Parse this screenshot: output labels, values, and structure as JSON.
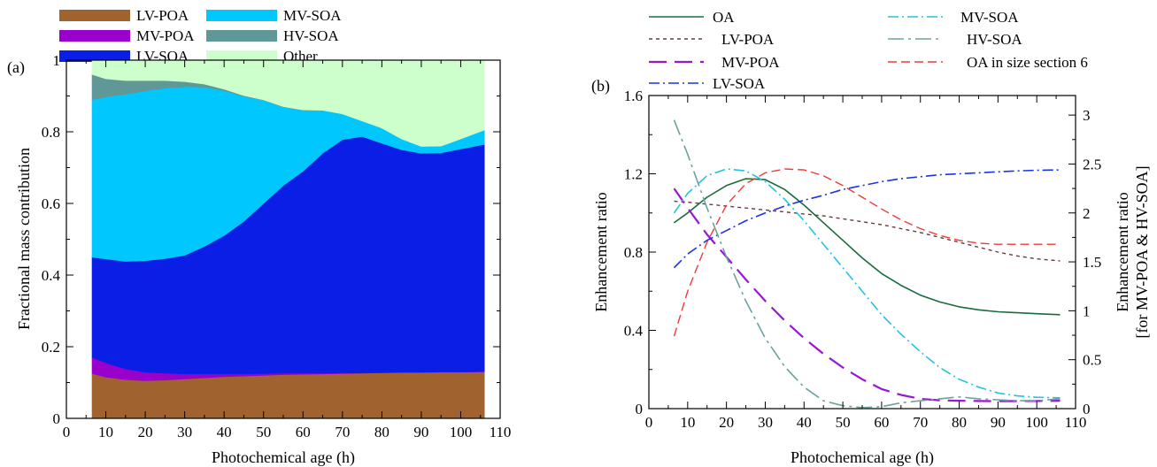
{
  "chart_data": [
    {
      "panel": "(a)",
      "type": "area",
      "stacked": true,
      "xlabel": "Photochemical age (h)",
      "ylabel": "Fractional mass contribution",
      "xlim": [
        0,
        110
      ],
      "ylim": [
        0,
        1
      ],
      "xticks": [
        0,
        10,
        20,
        30,
        40,
        50,
        60,
        70,
        80,
        90,
        100,
        110
      ],
      "yticks": [
        0,
        0.2,
        0.4,
        0.6,
        0.8,
        1
      ],
      "ytick_labels": [
        "0",
        "0.2",
        "0.4",
        "0.6",
        "0.8",
        "1"
      ],
      "legend": [
        "LV-POA",
        "MV-POA",
        "LV-SOA",
        "MV-SOA",
        "HV-SOA",
        "Other"
      ],
      "x": [
        6.5,
        10,
        15,
        20,
        25,
        30,
        35,
        40,
        45,
        50,
        55,
        60,
        65,
        70,
        75,
        80,
        85,
        90,
        95,
        100,
        106
      ],
      "series": [
        {
          "name": "LV-POA",
          "color": "#a0632f",
          "values": [
            0.125,
            0.115,
            0.108,
            0.105,
            0.107,
            0.11,
            0.113,
            0.116,
            0.118,
            0.12,
            0.122,
            0.123,
            0.124,
            0.125,
            0.126,
            0.127,
            0.128,
            0.128,
            0.129,
            0.129,
            0.13
          ]
        },
        {
          "name": "MV-POA",
          "color": "#9900cc",
          "values": [
            0.045,
            0.04,
            0.03,
            0.024,
            0.019,
            0.014,
            0.011,
            0.008,
            0.006,
            0.005,
            0.004,
            0.003,
            0.002,
            0.002,
            0.001,
            0.001,
            0.001,
            0.001,
            0.001,
            0.001,
            0.001
          ]
        },
        {
          "name": "LV-SOA",
          "color": "#0a1ee6",
          "values": [
            0.28,
            0.29,
            0.3,
            0.311,
            0.32,
            0.331,
            0.356,
            0.386,
            0.426,
            0.475,
            0.524,
            0.564,
            0.614,
            0.651,
            0.66,
            0.64,
            0.621,
            0.611,
            0.611,
            0.622,
            0.634
          ]
        },
        {
          "name": "MV-SOA",
          "color": "#00c8ff",
          "values": [
            0.44,
            0.452,
            0.467,
            0.474,
            0.476,
            0.471,
            0.445,
            0.405,
            0.349,
            0.288,
            0.219,
            0.17,
            0.12,
            0.072,
            0.043,
            0.042,
            0.03,
            0.019,
            0.019,
            0.028,
            0.04
          ]
        },
        {
          "name": "HV-SOA",
          "color": "#5f9896",
          "values": [
            0.07,
            0.051,
            0.038,
            0.029,
            0.021,
            0.014,
            0.008,
            0.004,
            0.002,
            0.001,
            0.001,
            0.001,
            0,
            0,
            0,
            0,
            0,
            0,
            0,
            0,
            0
          ]
        },
        {
          "name": "Other",
          "color": "#ccffcc",
          "values": [
            0.04,
            0.052,
            0.057,
            0.057,
            0.057,
            0.06,
            0.067,
            0.081,
            0.099,
            0.111,
            0.13,
            0.139,
            0.14,
            0.15,
            0.17,
            0.19,
            0.22,
            0.241,
            0.24,
            0.22,
            0.195
          ]
        }
      ]
    },
    {
      "panel": "(b)",
      "type": "line",
      "xlabel": "Photochemical age (h)",
      "ylabel": "Enhancement ratio",
      "y2label_lines": [
        "Enhancement ratio",
        "[for MV-POA & HV-SOA]"
      ],
      "xlim": [
        0,
        110
      ],
      "ylim": [
        0,
        1.6
      ],
      "y2lim": [
        0,
        3.2
      ],
      "xticks": [
        0,
        10,
        20,
        30,
        40,
        50,
        60,
        70,
        80,
        90,
        100,
        110
      ],
      "yticks": [
        0,
        0.4,
        0.8,
        1.2,
        1.6
      ],
      "ytick_labels": [
        "0",
        "0.4",
        "0.8",
        "1.2",
        "1.6"
      ],
      "y2ticks": [
        0,
        0.5,
        1,
        1.5,
        2,
        2.5,
        3
      ],
      "y2tick_labels": [
        "0",
        "0.5",
        "1",
        "1.5",
        "2",
        "2.5",
        "3"
      ],
      "legend": [
        "OA",
        "LV-POA",
        "MV-POA",
        "LV-SOA",
        "MV-SOA",
        "HV-SOA",
        "OA in size section 6"
      ],
      "x": [
        6.5,
        10,
        15,
        20,
        25,
        30,
        35,
        40,
        45,
        50,
        55,
        60,
        65,
        70,
        75,
        80,
        85,
        90,
        95,
        100,
        106
      ],
      "series": [
        {
          "name": "OA",
          "axis": "left",
          "color": "#1a6b3c",
          "dash": "",
          "width": 1.6,
          "values": [
            0.95,
            1.0,
            1.08,
            1.14,
            1.175,
            1.17,
            1.12,
            1.04,
            0.95,
            0.86,
            0.77,
            0.69,
            0.63,
            0.58,
            0.545,
            0.52,
            0.505,
            0.495,
            0.49,
            0.485,
            0.48
          ]
        },
        {
          "name": "LV-POA",
          "axis": "left",
          "color": "#6b3a3a",
          "dash": "4,4",
          "width": 1.4,
          "values": [
            1.06,
            1.055,
            1.045,
            1.035,
            1.025,
            1.015,
            1.005,
            0.995,
            0.985,
            0.97,
            0.955,
            0.94,
            0.92,
            0.9,
            0.875,
            0.85,
            0.825,
            0.8,
            0.78,
            0.765,
            0.755
          ]
        },
        {
          "name": "MV-POA",
          "axis": "right",
          "color": "#9a16d6",
          "dash": "20,9",
          "width": 2.2,
          "values": [
            2.25,
            2.05,
            1.78,
            1.55,
            1.32,
            1.1,
            0.9,
            0.72,
            0.56,
            0.42,
            0.3,
            0.2,
            0.14,
            0.1,
            0.085,
            0.08,
            0.078,
            0.077,
            0.077,
            0.078,
            0.08
          ]
        },
        {
          "name": "LV-SOA",
          "axis": "left",
          "color": "#1a35e6",
          "dash": "12,4,2,4",
          "width": 1.6,
          "values": [
            0.72,
            0.79,
            0.86,
            0.91,
            0.96,
            1.0,
            1.035,
            1.065,
            1.09,
            1.12,
            1.14,
            1.16,
            1.175,
            1.185,
            1.195,
            1.2,
            1.205,
            1.21,
            1.215,
            1.218,
            1.22
          ]
        },
        {
          "name": "MV-SOA",
          "axis": "left",
          "color": "#22c4e0",
          "dash": "12,4,2,4",
          "width": 1.6,
          "values": [
            1.0,
            1.1,
            1.19,
            1.225,
            1.215,
            1.16,
            1.07,
            0.96,
            0.84,
            0.72,
            0.6,
            0.48,
            0.38,
            0.29,
            0.21,
            0.15,
            0.11,
            0.08,
            0.065,
            0.058,
            0.055
          ]
        },
        {
          "name": "HV-SOA",
          "axis": "right",
          "color": "#6aa39e",
          "dash": "18,5,3,5",
          "width": 1.6,
          "values": [
            2.95,
            2.6,
            2.05,
            1.55,
            1.1,
            0.72,
            0.43,
            0.22,
            0.08,
            0.03,
            0.01,
            0.02,
            0.06,
            0.08,
            0.1,
            0.12,
            0.1,
            0.09,
            0.08,
            0.08,
            0.1
          ]
        },
        {
          "name": "OA in size section 6",
          "axis": "left",
          "color": "#ef3b3b",
          "dash": "10,5",
          "width": 1.4,
          "values": [
            0.37,
            0.6,
            0.85,
            1.04,
            1.15,
            1.205,
            1.225,
            1.22,
            1.19,
            1.14,
            1.08,
            1.02,
            0.965,
            0.92,
            0.885,
            0.86,
            0.845,
            0.84,
            0.84,
            0.84,
            0.84
          ]
        }
      ]
    }
  ]
}
